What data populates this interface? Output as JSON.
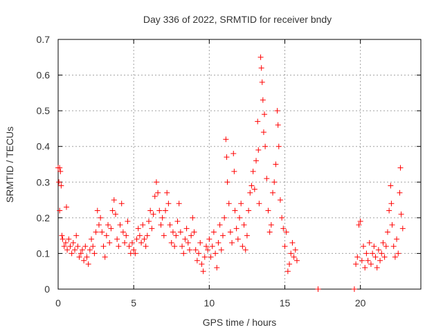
{
  "chart_data": {
    "type": "scatter",
    "title": "Day 336 of 2022, SRMTID for receiver bndy",
    "xlabel": "GPS time / hours",
    "ylabel": "SRMTID / TECUs",
    "xlim": [
      0,
      24
    ],
    "ylim": [
      0,
      0.7
    ],
    "xticks": [
      0,
      5,
      10,
      15,
      20
    ],
    "yticks": [
      0,
      0.1,
      0.2,
      0.3,
      0.4,
      0.5,
      0.6,
      0.7
    ],
    "xtick_labels": [
      "0",
      "5",
      "10",
      "15",
      "20"
    ],
    "ytick_labels": [
      "0",
      "0.1",
      "0.2",
      "0.3",
      "0.4",
      "0.5",
      "0.6",
      "0.7"
    ],
    "grid": true,
    "marker": "+",
    "marker_color": "#ff0000",
    "series": [
      {
        "name": "SRMTID",
        "points": [
          [
            0.0,
            0.34
          ],
          [
            0.05,
            0.3
          ],
          [
            0.1,
            0.22
          ],
          [
            0.1,
            0.34
          ],
          [
            0.15,
            0.33
          ],
          [
            0.2,
            0.29
          ],
          [
            0.25,
            0.15
          ],
          [
            0.3,
            0.14
          ],
          [
            0.4,
            0.12
          ],
          [
            0.5,
            0.13
          ],
          [
            0.55,
            0.23
          ],
          [
            0.6,
            0.11
          ],
          [
            0.7,
            0.14
          ],
          [
            0.8,
            0.12
          ],
          [
            0.9,
            0.1
          ],
          [
            1.0,
            0.13
          ],
          [
            1.1,
            0.11
          ],
          [
            1.2,
            0.15
          ],
          [
            1.3,
            0.12
          ],
          [
            1.4,
            0.09
          ],
          [
            1.5,
            0.1
          ],
          [
            1.6,
            0.11
          ],
          [
            1.7,
            0.08
          ],
          [
            1.8,
            0.12
          ],
          [
            1.9,
            0.09
          ],
          [
            2.0,
            0.07
          ],
          [
            2.1,
            0.11
          ],
          [
            2.2,
            0.14
          ],
          [
            2.3,
            0.12
          ],
          [
            2.4,
            0.1
          ],
          [
            2.5,
            0.16
          ],
          [
            2.6,
            0.22
          ],
          [
            2.7,
            0.18
          ],
          [
            2.8,
            0.2
          ],
          [
            2.9,
            0.16
          ],
          [
            3.0,
            0.12
          ],
          [
            3.1,
            0.09
          ],
          [
            3.2,
            0.15
          ],
          [
            3.3,
            0.18
          ],
          [
            3.4,
            0.13
          ],
          [
            3.5,
            0.17
          ],
          [
            3.6,
            0.22
          ],
          [
            3.7,
            0.25
          ],
          [
            3.8,
            0.21
          ],
          [
            3.9,
            0.14
          ],
          [
            4.0,
            0.12
          ],
          [
            4.1,
            0.18
          ],
          [
            4.2,
            0.24
          ],
          [
            4.3,
            0.16
          ],
          [
            4.4,
            0.13
          ],
          [
            4.5,
            0.15
          ],
          [
            4.6,
            0.19
          ],
          [
            4.7,
            0.12
          ],
          [
            4.8,
            0.1
          ],
          [
            4.9,
            0.13
          ],
          [
            5.0,
            0.11
          ],
          [
            5.1,
            0.1
          ],
          [
            5.2,
            0.14
          ],
          [
            5.3,
            0.17
          ],
          [
            5.4,
            0.15
          ],
          [
            5.5,
            0.13
          ],
          [
            5.6,
            0.18
          ],
          [
            5.7,
            0.14
          ],
          [
            5.8,
            0.12
          ],
          [
            5.9,
            0.15
          ],
          [
            6.0,
            0.19
          ],
          [
            6.1,
            0.22
          ],
          [
            6.2,
            0.17
          ],
          [
            6.3,
            0.21
          ],
          [
            6.4,
            0.26
          ],
          [
            6.5,
            0.3
          ],
          [
            6.6,
            0.27
          ],
          [
            6.7,
            0.22
          ],
          [
            6.8,
            0.18
          ],
          [
            6.9,
            0.2
          ],
          [
            7.0,
            0.15
          ],
          [
            7.1,
            0.22
          ],
          [
            7.2,
            0.27
          ],
          [
            7.3,
            0.24
          ],
          [
            7.4,
            0.18
          ],
          [
            7.5,
            0.13
          ],
          [
            7.6,
            0.16
          ],
          [
            7.7,
            0.12
          ],
          [
            7.8,
            0.15
          ],
          [
            7.9,
            0.19
          ],
          [
            8.0,
            0.24
          ],
          [
            8.1,
            0.16
          ],
          [
            8.2,
            0.12
          ],
          [
            8.3,
            0.1
          ],
          [
            8.4,
            0.14
          ],
          [
            8.5,
            0.17
          ],
          [
            8.6,
            0.13
          ],
          [
            8.7,
            0.11
          ],
          [
            8.8,
            0.15
          ],
          [
            8.9,
            0.2
          ],
          [
            9.0,
            0.16
          ],
          [
            9.1,
            0.11
          ],
          [
            9.2,
            0.08
          ],
          [
            9.3,
            0.1
          ],
          [
            9.4,
            0.13
          ],
          [
            9.5,
            0.07
          ],
          [
            9.6,
            0.05
          ],
          [
            9.7,
            0.09
          ],
          [
            9.8,
            0.12
          ],
          [
            9.9,
            0.11
          ],
          [
            10.0,
            0.14
          ],
          [
            10.1,
            0.09
          ],
          [
            10.2,
            0.12
          ],
          [
            10.3,
            0.16
          ],
          [
            10.4,
            0.1
          ],
          [
            10.5,
            0.06
          ],
          [
            10.6,
            0.13
          ],
          [
            10.7,
            0.18
          ],
          [
            10.8,
            0.11
          ],
          [
            10.9,
            0.15
          ],
          [
            11.0,
            0.2
          ],
          [
            11.1,
            0.42
          ],
          [
            11.15,
            0.37
          ],
          [
            11.2,
            0.3
          ],
          [
            11.3,
            0.24
          ],
          [
            11.4,
            0.16
          ],
          [
            11.5,
            0.13
          ],
          [
            11.6,
            0.38
          ],
          [
            11.65,
            0.33
          ],
          [
            11.7,
            0.22
          ],
          [
            11.8,
            0.17
          ],
          [
            11.9,
            0.14
          ],
          [
            12.0,
            0.2
          ],
          [
            12.1,
            0.24
          ],
          [
            12.2,
            0.12
          ],
          [
            12.3,
            0.18
          ],
          [
            12.4,
            0.11
          ],
          [
            12.5,
            0.15
          ],
          [
            12.6,
            0.22
          ],
          [
            12.7,
            0.27
          ],
          [
            12.8,
            0.29
          ],
          [
            12.9,
            0.33
          ],
          [
            13.0,
            0.28
          ],
          [
            13.1,
            0.36
          ],
          [
            13.2,
            0.47
          ],
          [
            13.25,
            0.39
          ],
          [
            13.3,
            0.24
          ],
          [
            13.4,
            0.65
          ],
          [
            13.45,
            0.62
          ],
          [
            13.5,
            0.58
          ],
          [
            13.55,
            0.53
          ],
          [
            13.6,
            0.44
          ],
          [
            13.65,
            0.49
          ],
          [
            13.7,
            0.4
          ],
          [
            13.8,
            0.31
          ],
          [
            13.9,
            0.22
          ],
          [
            14.0,
            0.16
          ],
          [
            14.1,
            0.18
          ],
          [
            14.2,
            0.27
          ],
          [
            14.3,
            0.3
          ],
          [
            14.4,
            0.35
          ],
          [
            14.5,
            0.5
          ],
          [
            14.55,
            0.46
          ],
          [
            14.6,
            0.4
          ],
          [
            14.7,
            0.25
          ],
          [
            14.8,
            0.2
          ],
          [
            14.9,
            0.17
          ],
          [
            15.0,
            0.12
          ],
          [
            15.1,
            0.16
          ],
          [
            15.2,
            0.05
          ],
          [
            15.3,
            0.07
          ],
          [
            15.4,
            0.1
          ],
          [
            15.5,
            0.13
          ],
          [
            15.6,
            0.09
          ],
          [
            15.7,
            0.11
          ],
          [
            15.8,
            0.08
          ],
          [
            17.2,
            0.0
          ],
          [
            19.6,
            0.0
          ],
          [
            19.7,
            0.07
          ],
          [
            19.8,
            0.09
          ],
          [
            19.9,
            0.18
          ],
          [
            20.0,
            0.19
          ],
          [
            20.1,
            0.08
          ],
          [
            20.2,
            0.12
          ],
          [
            20.3,
            0.06
          ],
          [
            20.4,
            0.1
          ],
          [
            20.5,
            0.08
          ],
          [
            20.6,
            0.13
          ],
          [
            20.7,
            0.07
          ],
          [
            20.8,
            0.1
          ],
          [
            20.9,
            0.12
          ],
          [
            21.0,
            0.09
          ],
          [
            21.1,
            0.06
          ],
          [
            21.2,
            0.11
          ],
          [
            21.3,
            0.08
          ],
          [
            21.4,
            0.1
          ],
          [
            21.5,
            0.13
          ],
          [
            21.6,
            0.09
          ],
          [
            21.7,
            0.12
          ],
          [
            21.8,
            0.16
          ],
          [
            21.9,
            0.22
          ],
          [
            22.0,
            0.29
          ],
          [
            22.05,
            0.24
          ],
          [
            22.1,
            0.18
          ],
          [
            22.2,
            0.12
          ],
          [
            22.3,
            0.09
          ],
          [
            22.4,
            0.14
          ],
          [
            22.5,
            0.1
          ],
          [
            22.6,
            0.27
          ],
          [
            22.65,
            0.34
          ],
          [
            22.7,
            0.21
          ],
          [
            22.8,
            0.17
          ]
        ]
      }
    ]
  }
}
